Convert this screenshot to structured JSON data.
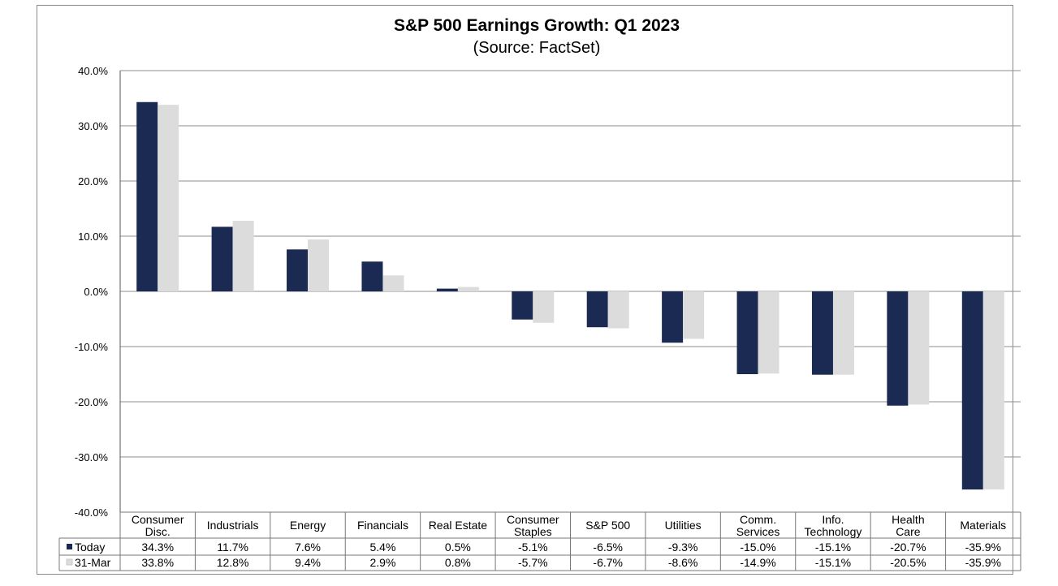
{
  "chart_data": {
    "type": "bar",
    "title": "S&P 500 Earnings Growth: Q1 2023",
    "subtitle": "(Source: FactSet)",
    "xlabel": "",
    "ylabel": "",
    "ylim": [
      -40,
      40
    ],
    "yticks": [
      40,
      30,
      20,
      10,
      0,
      -10,
      -20,
      -30,
      -40
    ],
    "ytick_labels": [
      "40.0%",
      "30.0%",
      "20.0%",
      "10.0%",
      "0.0%",
      "-10.0%",
      "-20.0%",
      "-30.0%",
      "-40.0%"
    ],
    "grid": true,
    "legend": "data table (bottom)",
    "categories": [
      [
        "Consumer",
        "Disc."
      ],
      [
        "Industrials"
      ],
      [
        "Energy"
      ],
      [
        "Financials"
      ],
      [
        "Real Estate"
      ],
      [
        "Consumer",
        "Staples"
      ],
      [
        "S&P 500"
      ],
      [
        "Utilities"
      ],
      [
        "Comm.",
        "Services"
      ],
      [
        "Info.",
        "Technology"
      ],
      [
        "Health",
        "Care"
      ],
      [
        "Materials"
      ]
    ],
    "series": [
      {
        "name": "Today",
        "color": "#1b2a52",
        "values": [
          34.3,
          11.7,
          7.6,
          5.4,
          0.5,
          -5.1,
          -6.5,
          -9.3,
          -15.0,
          -15.1,
          -20.7,
          -35.9
        ],
        "labels": [
          "34.3%",
          "11.7%",
          "7.6%",
          "5.4%",
          "0.5%",
          "-5.1%",
          "-6.5%",
          "-9.3%",
          "-15.0%",
          "-15.1%",
          "-20.7%",
          "-35.9%"
        ]
      },
      {
        "name": "31-Mar",
        "color": "#dcdcdc",
        "values": [
          33.8,
          12.8,
          9.4,
          2.9,
          0.8,
          -5.7,
          -6.7,
          -8.6,
          -14.9,
          -15.1,
          -20.5,
          -35.9
        ],
        "labels": [
          "33.8%",
          "12.8%",
          "9.4%",
          "2.9%",
          "0.8%",
          "-5.7%",
          "-6.7%",
          "-8.6%",
          "-14.9%",
          "-15.1%",
          "-20.5%",
          "-35.9%"
        ]
      }
    ]
  }
}
